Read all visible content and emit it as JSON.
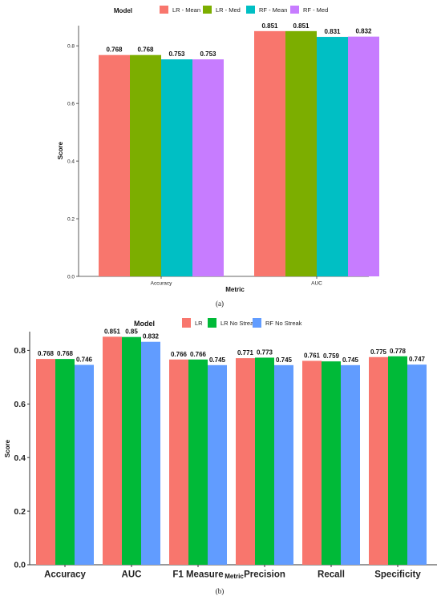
{
  "chart_data": [
    {
      "type": "bar",
      "panel_label": "(a)",
      "legend_title": "Model",
      "legend_position": "top",
      "categories": [
        "Accuracy",
        "AUC"
      ],
      "series": [
        {
          "name": "LR - Mean",
          "color": "#F8766D",
          "values": [
            0.768,
            0.851
          ],
          "labels": [
            "0.768",
            "0.851"
          ]
        },
        {
          "name": "LR - Med",
          "color": "#7CAE00",
          "values": [
            0.768,
            0.851
          ],
          "labels": [
            "0.768",
            "0.851"
          ]
        },
        {
          "name": "RF - Mean",
          "color": "#00BFC4",
          "values": [
            0.753,
            0.831
          ],
          "labels": [
            "0.753",
            "0.831"
          ]
        },
        {
          "name": "RF - Med",
          "color": "#C77CFF",
          "values": [
            0.753,
            0.832
          ],
          "labels": [
            "0.753",
            "0.832"
          ]
        }
      ],
      "xlabel": "Metric",
      "ylabel": "Score",
      "ylim": [
        0,
        0.87
      ],
      "yticks": [
        "0.0",
        "0.2",
        "0.4",
        "0.6",
        "0.8"
      ],
      "grid": false
    },
    {
      "type": "bar",
      "panel_label": "(b)",
      "legend_title": "Model",
      "legend_position": "top",
      "categories": [
        "Accuracy",
        "AUC",
        "F1 Measure",
        "Precision",
        "Recall",
        "Specificity"
      ],
      "series": [
        {
          "name": "LR",
          "color": "#F8766D",
          "values": [
            0.768,
            0.851,
            0.766,
            0.771,
            0.761,
            0.775
          ],
          "labels": [
            "0.768",
            "0.851",
            "0.766",
            "0.771",
            "0.761",
            "0.775"
          ]
        },
        {
          "name": "LR No Streak",
          "color": "#00BA38",
          "values": [
            0.768,
            0.85,
            0.766,
            0.773,
            0.759,
            0.778
          ],
          "labels": [
            "0.768",
            "0.85",
            "0.766",
            "0.773",
            "0.759",
            "0.778"
          ]
        },
        {
          "name": "RF No Streak",
          "color": "#619CFF",
          "values": [
            0.746,
            0.832,
            0.745,
            0.745,
            0.745,
            0.747
          ],
          "labels": [
            "0.746",
            "0.832",
            "0.745",
            "0.745",
            "0.745",
            "0.747"
          ]
        }
      ],
      "xlabel": "Metric",
      "ylabel": "Score",
      "ylim": [
        0,
        0.87
      ],
      "yticks": [
        "0.0",
        "0.2",
        "0.4",
        "0.6",
        "0.8"
      ],
      "grid": false
    }
  ]
}
